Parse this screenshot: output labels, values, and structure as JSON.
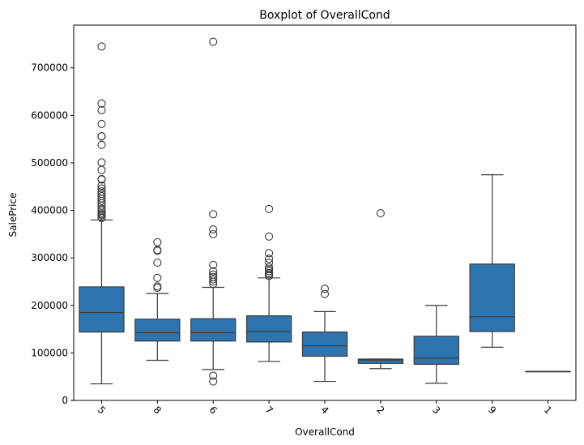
{
  "chart_data": {
    "type": "boxplot",
    "title": "Boxplot of OverallCond",
    "xlabel": "OverallCond",
    "ylabel": "SalePrice",
    "ylim": [
      0,
      790000
    ],
    "y_ticks": [
      0,
      100000,
      200000,
      300000,
      400000,
      500000,
      600000,
      700000
    ],
    "y_tick_labels": [
      "0",
      "100000",
      "200000",
      "300000",
      "400000",
      "500000",
      "600000",
      "700000"
    ],
    "box_color": "#2e75b0",
    "line_color": "#3a3a3a",
    "grid": false,
    "categories": [
      "5",
      "8",
      "6",
      "7",
      "4",
      "2",
      "3",
      "9",
      "1"
    ],
    "boxes": [
      {
        "category": "5",
        "whislo": 34900,
        "q1": 144000,
        "med": 185000,
        "q3": 239000,
        "whishi": 380000,
        "fliers": [
          384000,
          385000,
          390000,
          392000,
          395000,
          400000,
          403000,
          410000,
          415000,
          420000,
          425000,
          430000,
          435000,
          440000,
          446000,
          452000,
          465000,
          466000,
          485000,
          501000,
          538000,
          556000,
          556000,
          582000,
          611000,
          625000,
          745000
        ]
      },
      {
        "category": "8",
        "whislo": 84500,
        "q1": 125000,
        "med": 142500,
        "q3": 171000,
        "whishi": 225000,
        "fliers": [
          237000,
          240000,
          258000,
          290000,
          315000,
          316600,
          333000
        ]
      },
      {
        "category": "6",
        "whislo": 65000,
        "q1": 125000,
        "med": 142500,
        "q3": 172000,
        "whishi": 238000,
        "fliers": [
          40000,
          52000,
          245000,
          250000,
          255000,
          260000,
          265000,
          272000,
          285000,
          350000,
          360000,
          392000,
          755000
        ]
      },
      {
        "category": "7",
        "whislo": 82000,
        "q1": 123000,
        "med": 145000,
        "q3": 178000,
        "whishi": 258000,
        "fliers": [
          262000,
          265000,
          268000,
          272000,
          276000,
          280000,
          290000,
          298000,
          310000,
          345000,
          403000
        ]
      },
      {
        "category": "4",
        "whislo": 40000,
        "q1": 93000,
        "med": 115000,
        "q3": 144000,
        "whishi": 187000,
        "fliers": [
          224000,
          235000
        ]
      },
      {
        "category": "2",
        "whislo": 67000,
        "q1": 78000,
        "med": 85000,
        "q3": 87000,
        "whishi": 87000,
        "fliers": [
          394000
        ]
      },
      {
        "category": "3",
        "whislo": 36000,
        "q1": 76000,
        "med": 89000,
        "q3": 135000,
        "whishi": 200000,
        "fliers": []
      },
      {
        "category": "9",
        "whislo": 112000,
        "q1": 145000,
        "med": 176000,
        "q3": 287000,
        "whishi": 475000,
        "fliers": []
      },
      {
        "category": "1",
        "whislo": 61000,
        "q1": 61000,
        "med": 61000,
        "q3": 61000,
        "whishi": 61000,
        "fliers": []
      }
    ]
  }
}
